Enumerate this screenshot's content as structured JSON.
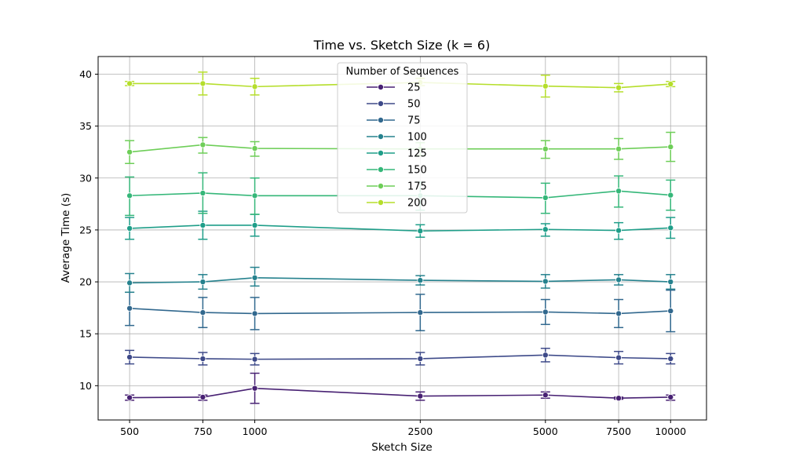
{
  "chart_data": {
    "type": "line",
    "title": "Time vs. Sketch Size (k = 6)",
    "xlabel": "Sketch Size",
    "ylabel": "Average Time (s)",
    "x_scale": "log",
    "x": [
      500,
      750,
      1000,
      2500,
      5000,
      7500,
      10000
    ],
    "x_tick_labels": [
      "500",
      "750",
      "1000",
      "2500",
      "5000",
      "7500",
      "10000"
    ],
    "xlim": [
      420,
      12200
    ],
    "ylim": [
      6.7,
      41.7
    ],
    "yticks": [
      10,
      15,
      20,
      25,
      30,
      35,
      40
    ],
    "grid": true,
    "legend": {
      "title": "Number of Sequences",
      "placement": "top-center"
    },
    "series": [
      {
        "name": "25",
        "color": "#482173",
        "values": [
          8.85,
          8.9,
          9.75,
          9.0,
          9.1,
          8.8,
          8.9
        ],
        "err_low": [
          8.6,
          8.6,
          8.3,
          8.6,
          8.8,
          8.7,
          8.6
        ],
        "err_high": [
          9.1,
          9.1,
          11.2,
          9.4,
          9.4,
          8.9,
          9.1
        ]
      },
      {
        "name": "50",
        "color": "#3e4a89",
        "values": [
          12.75,
          12.6,
          12.55,
          12.6,
          12.95,
          12.7,
          12.6
        ],
        "err_low": [
          12.1,
          12.0,
          12.0,
          12.0,
          12.3,
          12.1,
          12.1
        ],
        "err_high": [
          13.4,
          13.2,
          13.1,
          13.2,
          13.6,
          13.3,
          13.1
        ]
      },
      {
        "name": "75",
        "color": "#31688e",
        "values": [
          17.45,
          17.05,
          16.95,
          17.05,
          17.1,
          16.95,
          17.2
        ],
        "err_low": [
          15.8,
          15.6,
          15.4,
          15.3,
          15.9,
          15.6,
          15.2
        ],
        "err_high": [
          19.0,
          18.5,
          18.5,
          18.8,
          18.3,
          18.3,
          19.2
        ]
      },
      {
        "name": "100",
        "color": "#26828e",
        "values": [
          19.9,
          20.0,
          20.4,
          20.15,
          20.05,
          20.2,
          20.0
        ],
        "err_low": [
          19.0,
          19.3,
          19.6,
          19.7,
          19.4,
          19.7,
          19.3
        ],
        "err_high": [
          20.8,
          20.7,
          21.4,
          20.6,
          20.7,
          20.7,
          20.7
        ]
      },
      {
        "name": "125",
        "color": "#1f9e89",
        "values": [
          25.15,
          25.45,
          25.45,
          24.9,
          25.05,
          24.95,
          25.2
        ],
        "err_low": [
          24.1,
          24.1,
          24.4,
          24.3,
          24.4,
          24.1,
          24.2
        ],
        "err_high": [
          26.2,
          26.8,
          26.5,
          25.5,
          25.6,
          25.7,
          26.2
        ]
      },
      {
        "name": "150",
        "color": "#35b779",
        "values": [
          28.3,
          28.55,
          28.3,
          28.3,
          28.1,
          28.75,
          28.35
        ],
        "err_low": [
          26.4,
          26.6,
          26.5,
          26.9,
          26.6,
          27.2,
          26.9
        ],
        "err_high": [
          30.1,
          30.5,
          30.0,
          29.6,
          29.5,
          30.2,
          29.8
        ]
      },
      {
        "name": "175",
        "color": "#6ece58",
        "values": [
          32.5,
          33.2,
          32.85,
          32.8,
          32.8,
          32.8,
          33.0
        ],
        "err_low": [
          31.4,
          32.4,
          32.1,
          32.2,
          31.9,
          31.8,
          31.6
        ],
        "err_high": [
          33.6,
          33.9,
          33.5,
          33.4,
          33.6,
          33.8,
          34.4
        ]
      },
      {
        "name": "200",
        "color": "#b5de2b",
        "values": [
          39.1,
          39.1,
          38.8,
          39.2,
          38.85,
          38.7,
          39.05
        ],
        "err_low": [
          38.9,
          38.0,
          38.0,
          38.9,
          37.8,
          38.3,
          38.8
        ],
        "err_high": [
          39.3,
          40.2,
          39.6,
          39.6,
          39.9,
          39.1,
          39.3
        ]
      }
    ]
  }
}
